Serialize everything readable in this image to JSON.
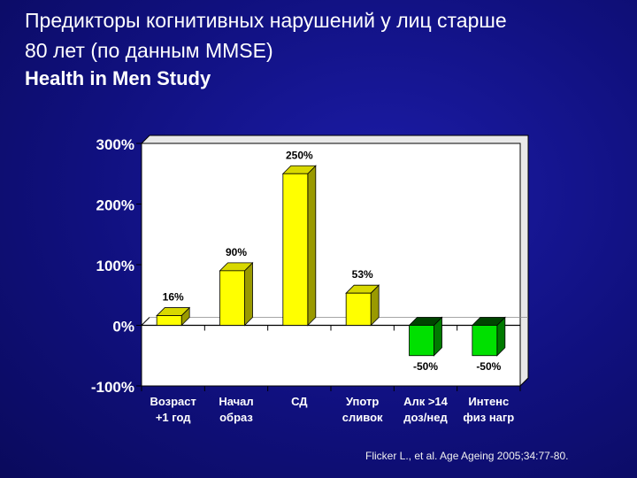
{
  "slide": {
    "title_line1": "Предикторы когнитивных нарушений у лиц старше",
    "title_line2": "80 лет (по данным MMSE)",
    "subtitle": "Health in Men Study",
    "source": "Flicker L., et al. Age Ageing 2005;34:77-80."
  },
  "chart_data": {
    "type": "bar",
    "title": "",
    "xlabel": "",
    "ylabel": "",
    "ylim": [
      -100,
      300
    ],
    "yticks": [
      {
        "value": 300,
        "label": "300%"
      },
      {
        "value": 200,
        "label": "200%"
      },
      {
        "value": 100,
        "label": "100%"
      },
      {
        "value": 0,
        "label": "0%"
      },
      {
        "value": -100,
        "label": "-100%"
      }
    ],
    "categories": [
      {
        "line1": "Возраст",
        "line2": "+1 год"
      },
      {
        "line1": "Начал",
        "line2": "образ"
      },
      {
        "line1": "СД",
        "line2": ""
      },
      {
        "line1": "Употр",
        "line2": "сливок"
      },
      {
        "line1": "Алк >14",
        "line2": "доз/нед"
      },
      {
        "line1": "Интенс",
        "line2": "физ нагр"
      }
    ],
    "values": [
      16,
      90,
      250,
      53,
      -50,
      -50
    ],
    "labels": [
      "16%",
      "90%",
      "250%",
      "53%",
      "-50%",
      "-50%"
    ],
    "grid": false,
    "legend": "none",
    "colors": {
      "positive": "#ffff00",
      "positive_side": "#9a9a00",
      "negative": "#00e000",
      "negative_side": "#007a00",
      "plot_bg": "#ffffff",
      "axis": "#000000"
    }
  }
}
